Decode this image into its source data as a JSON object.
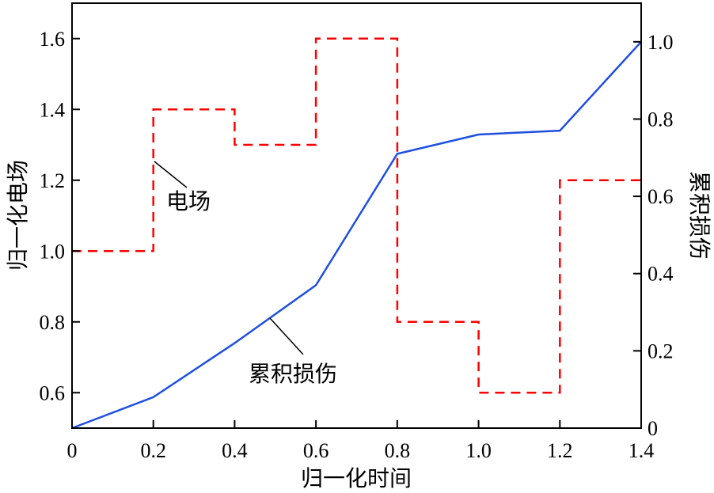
{
  "chart_data": {
    "type": "line",
    "xlabel": "归一化时间",
    "ylabel_left": "归一化电场",
    "ylabel_right": "累积损伤",
    "xlim": [
      0,
      1.4
    ],
    "ylim_left": [
      0.5,
      1.7
    ],
    "ylim_right": [
      0,
      1.1
    ],
    "x_ticks": [
      {
        "value": 0,
        "label": "0"
      },
      {
        "value": 0.2,
        "label": "0.2"
      },
      {
        "value": 0.4,
        "label": "0.4"
      },
      {
        "value": 0.6,
        "label": "0.6"
      },
      {
        "value": 0.8,
        "label": "0.8"
      },
      {
        "value": 1.0,
        "label": "1.0"
      },
      {
        "value": 1.2,
        "label": "1.2"
      },
      {
        "value": 1.4,
        "label": "1.4"
      }
    ],
    "y_left_ticks": [
      {
        "value": 0.6,
        "label": "0.6"
      },
      {
        "value": 0.8,
        "label": "0.8"
      },
      {
        "value": 1.0,
        "label": "1.0"
      },
      {
        "value": 1.2,
        "label": "1.2"
      },
      {
        "value": 1.4,
        "label": "1.4"
      },
      {
        "value": 1.6,
        "label": "1.6"
      }
    ],
    "y_right_ticks": [
      {
        "value": 0,
        "label": "0"
      },
      {
        "value": 0.2,
        "label": "0.2"
      },
      {
        "value": 0.4,
        "label": "0.4"
      },
      {
        "value": 0.6,
        "label": "0.6"
      },
      {
        "value": 0.8,
        "label": "0.8"
      },
      {
        "value": 1.0,
        "label": "1.0"
      }
    ],
    "series": [
      {
        "name": "电场",
        "axis": "left",
        "style": "step-dashed",
        "color": "#ff0000",
        "x": [
          0,
          0.2,
          0.2,
          0.4,
          0.4,
          0.6,
          0.6,
          0.8,
          0.8,
          1.0,
          1.0,
          1.2,
          1.2,
          1.4
        ],
        "y": [
          1.0,
          1.0,
          1.4,
          1.4,
          1.3,
          1.3,
          1.6,
          1.6,
          0.8,
          0.8,
          0.6,
          0.6,
          1.2,
          1.2
        ]
      },
      {
        "name": "累积损伤",
        "axis": "right",
        "style": "solid",
        "color": "#1f4fe0",
        "x": [
          0,
          0.2,
          0.4,
          0.6,
          0.8,
          1.0,
          1.2,
          1.4
        ],
        "y": [
          0.0,
          0.08,
          0.22,
          0.37,
          0.71,
          0.76,
          0.77,
          1.0
        ]
      }
    ],
    "annotations": [
      {
        "text": "电场",
        "series": "电场"
      },
      {
        "text": "累积损伤",
        "series": "累积损伤"
      }
    ]
  }
}
